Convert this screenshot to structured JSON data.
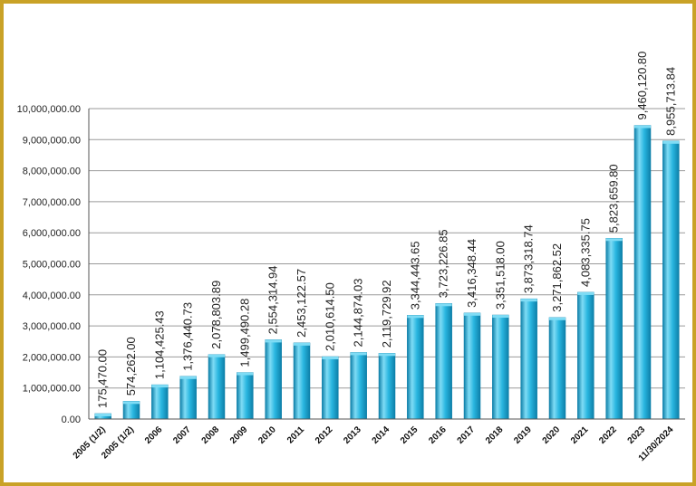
{
  "chart_data": {
    "type": "bar",
    "title": "",
    "xlabel": "",
    "ylabel": "",
    "ylim": [
      0,
      10000000
    ],
    "yticks": [
      "0.00",
      "1,000,000.00",
      "2,000,000.00",
      "3,000,000.00",
      "4,000,000.00",
      "5,000,000.00",
      "6,000,000.00",
      "7,000,000.00",
      "8,000,000.00",
      "9,000,000.00",
      "10,000,000.00"
    ],
    "grid": true,
    "legend": "none",
    "categories": [
      "2005 (1/2)",
      "2005 (1/2)",
      "2006",
      "2007",
      "2008",
      "2009",
      "2010",
      "2011",
      "2012",
      "2013",
      "2014",
      "2015",
      "2016",
      "2017",
      "2018",
      "2019",
      "2020",
      "2021",
      "2022",
      "2023",
      "11/30/2024"
    ],
    "values": [
      175470.0,
      574262.0,
      1104425.43,
      1376440.73,
      2078803.89,
      1499490.28,
      2554314.94,
      2453122.57,
      2010614.5,
      2144874.03,
      2119729.92,
      3344443.65,
      3723226.85,
      3416348.44,
      3351518.0,
      3873318.74,
      3271862.52,
      4083335.75,
      5823659.8,
      9460120.8,
      8955713.84
    ],
    "value_labels": [
      "175,470.00",
      "574,262.00",
      "1,104,425.43",
      "1,376,440.73",
      "2,078,803.89",
      "1,499,490.28",
      "2,554,314.94",
      "2,453,122.57",
      "2,010,614.50",
      "2,144,874.03",
      "2,119,729.92",
      "3,344,443.65",
      "3,723,226.85",
      "3,416,348.44",
      "3,351,518.00",
      "3,873,318.74",
      "3,271,862.52",
      "4,083,335.75",
      "5,823,659.80",
      "9,460,120.80",
      "8,955,713.84"
    ]
  },
  "colors": {
    "border": "#c9a227",
    "bar_light": "#7fdcf5",
    "bar_mid": "#29b6e0",
    "bar_dark": "#0d7fa8",
    "grid": "#9a9a9a",
    "axis": "#555555"
  }
}
